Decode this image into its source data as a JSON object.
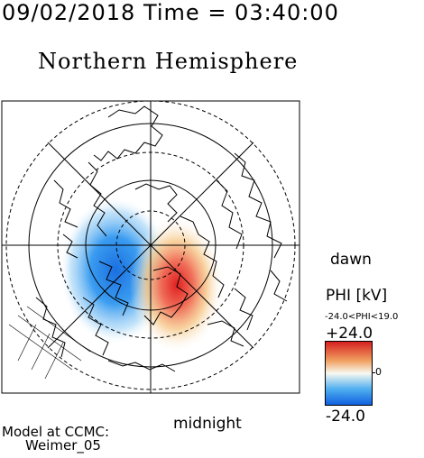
{
  "header": {
    "timestamp": "09/02/2018 Time = 03:40:00",
    "title": "Northern Hemisphere"
  },
  "map": {
    "projection": "polar stereographic",
    "hemisphere": "northern",
    "labels": {
      "dawn": "dawn",
      "midnight": "midnight"
    }
  },
  "legend": {
    "title": "PHI [kV]",
    "range_text": "-24.0<PHI<19.0",
    "max_label": "+24.0",
    "zero_label": "0",
    "min_label": "-24.0",
    "colors": {
      "max": "#d62020",
      "upper": "#f0a060",
      "mid": "#f8f8f0",
      "lower": "#50b0f0",
      "min": "#1060e0"
    }
  },
  "credit": {
    "line1": "Model at CCMC:",
    "line2": "Weimer_05"
  },
  "colors": {
    "negative_cell": "#1a82e8",
    "positive_cell": "#e02828",
    "coastline": "#000000",
    "grid": "#000000"
  }
}
